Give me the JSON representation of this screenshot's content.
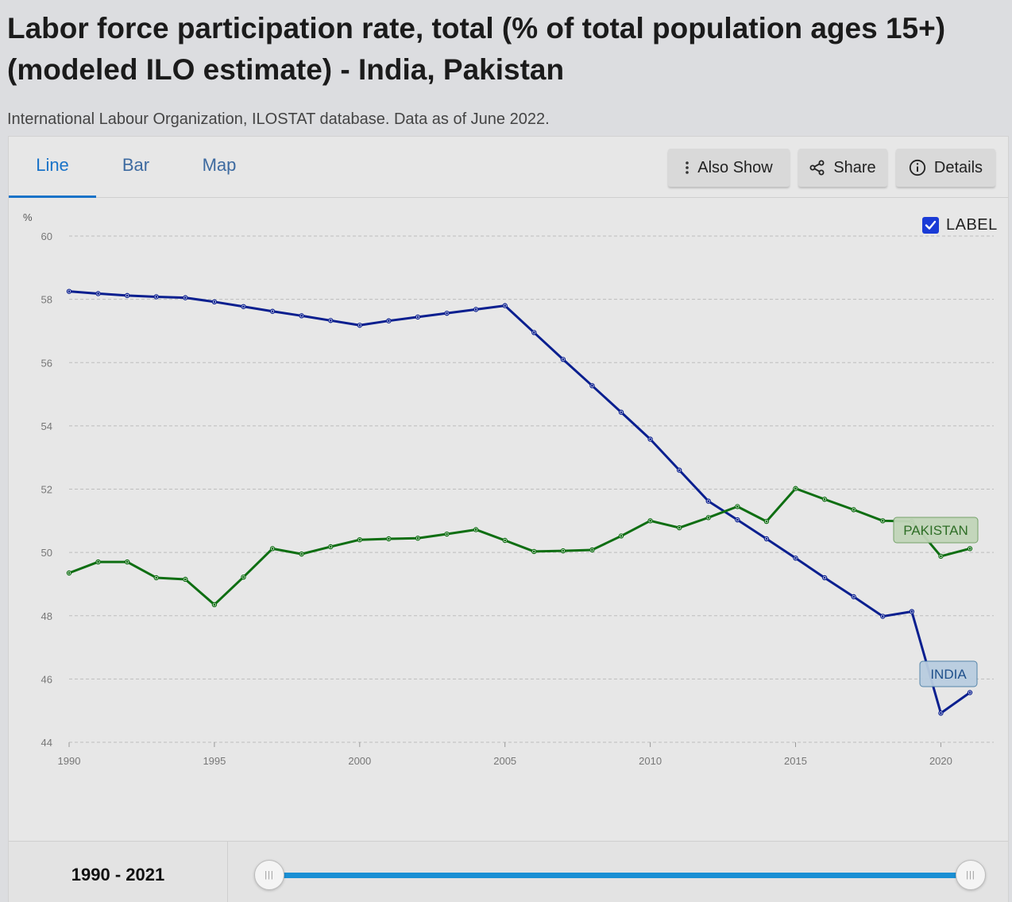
{
  "header": {
    "title": "Labor force participation rate, total (% of total population ages 15+) (modeled ILO estimate) - India, Pakistan",
    "source": "International Labour Organization, ILOSTAT database. Data as of June 2022."
  },
  "tabs": [
    {
      "label": "Line"
    },
    {
      "label": "Bar"
    },
    {
      "label": "Map"
    }
  ],
  "toolbar": {
    "also_show_label": "Also Show",
    "share_label": "Share",
    "details_label": "Details"
  },
  "label_toggle": {
    "label": "LABEL",
    "checked": true
  },
  "range": {
    "label": "1990 - 2021",
    "handle_glyph": "|||"
  },
  "colors": {
    "india": "#0a1f8f",
    "pakistan": "#0e6e12",
    "accent": "#1a73c8",
    "slider": "#1a8fd4"
  },
  "chart_data": {
    "type": "line",
    "title": "",
    "xlabel": "",
    "ylabel": "%",
    "xlim": [
      1990,
      2021
    ],
    "ylim": [
      44,
      60
    ],
    "yticks": [
      44,
      46,
      48,
      50,
      52,
      54,
      56,
      58,
      60
    ],
    "xticks": [
      1990,
      1995,
      2000,
      2005,
      2010,
      2015,
      2020
    ],
    "grid": true,
    "x": [
      1990,
      1991,
      1992,
      1993,
      1994,
      1995,
      1996,
      1997,
      1998,
      1999,
      2000,
      2001,
      2002,
      2003,
      2004,
      2005,
      2006,
      2007,
      2008,
      2009,
      2010,
      2011,
      2012,
      2013,
      2014,
      2015,
      2016,
      2017,
      2018,
      2019,
      2020,
      2021
    ],
    "series": [
      {
        "name": "INDIA",
        "color": "#0a1f8f",
        "label_bg": "#b9cde0",
        "label_border": "#4d7fa6",
        "label_color": "#1e4f8a",
        "values": [
          58.25,
          58.18,
          58.12,
          58.08,
          58.05,
          57.92,
          57.77,
          57.62,
          57.48,
          57.33,
          57.18,
          57.32,
          57.44,
          57.56,
          57.68,
          57.8,
          56.95,
          56.1,
          55.27,
          54.43,
          53.58,
          52.6,
          51.62,
          51.03,
          50.43,
          49.82,
          49.2,
          48.6,
          47.98,
          48.13,
          44.92,
          45.57
        ]
      },
      {
        "name": "PAKISTAN",
        "color": "#0e6e12",
        "label_bg": "#c2d6b9",
        "label_border": "#6e9e63",
        "label_color": "#2e6e26",
        "values": [
          49.35,
          49.7,
          49.7,
          49.2,
          49.15,
          48.35,
          49.22,
          50.12,
          49.95,
          50.18,
          50.4,
          50.43,
          50.45,
          50.58,
          50.72,
          50.38,
          50.03,
          50.05,
          50.08,
          50.52,
          51,
          50.78,
          51.1,
          51.45,
          50.98,
          52.02,
          51.68,
          51.35,
          51,
          50.98,
          49.88,
          50.12
        ]
      }
    ]
  }
}
